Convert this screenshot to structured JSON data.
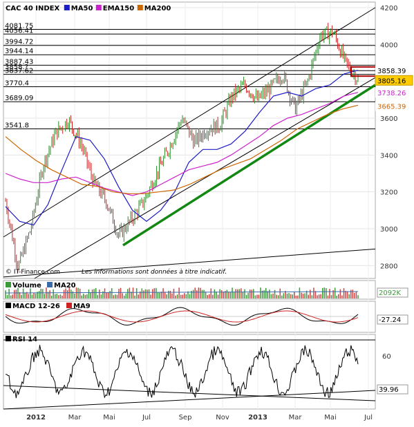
{
  "chart_data": [
    {
      "type": "line",
      "panel": "price",
      "title": "CAC 40 INDEX",
      "legend": [
        {
          "name": "MA50",
          "color": "#1c1cc8"
        },
        {
          "name": "EMA150",
          "color": "#cc22cc"
        },
        {
          "name": "MA200",
          "color": "#cc6600"
        }
      ],
      "ylim": [
        2730,
        4230
      ],
      "yticks": [
        2800,
        3000,
        3200,
        3400,
        3600,
        3800,
        4000,
        4200
      ],
      "xticks": [
        "2012",
        "Mar",
        "Mai",
        "Jul",
        "Sep",
        "Nov",
        "2013",
        "Mar",
        "Mai",
        "Jul"
      ],
      "levels": [
        "4081.75",
        "4056.41",
        "3994.72",
        "3944.14",
        "3887.43",
        "3858.?",
        "3837.62",
        "3770.4",
        "3689.09",
        "3541.8"
      ],
      "right_labels": [
        {
          "text": "3858.39",
          "value": 3858.39,
          "bg": "#ffffff",
          "color": "#000000"
        },
        {
          "text": "3805.16",
          "value": 3805.16,
          "bg": "#ffcc00",
          "color": "#000000"
        },
        {
          "text": "3738.26",
          "value": 3738.26,
          "bg": "#ffffff",
          "color": "#cc22cc"
        },
        {
          "text": "3665.39",
          "value": 3665.39,
          "bg": "#ffffff",
          "color": "#cc6600"
        }
      ],
      "series": [
        {
          "name": "price",
          "values": [
            3150,
            2790,
            3000,
            3350,
            3520,
            3590,
            3460,
            3250,
            3150,
            2960,
            3050,
            3150,
            3300,
            3440,
            3600,
            3470,
            3540,
            3560,
            3720,
            3780,
            3700,
            3760,
            3840,
            3650,
            3800,
            4050,
            4070,
            3900,
            3810
          ]
        },
        {
          "name": "MA50",
          "values": [
            3120,
            3040,
            3020,
            3130,
            3320,
            3500,
            3480,
            3380,
            3230,
            3100,
            3040,
            3100,
            3200,
            3360,
            3430,
            3430,
            3460,
            3530,
            3630,
            3720,
            3740,
            3720,
            3760,
            3780,
            3840,
            3860
          ]
        },
        {
          "name": "EMA150",
          "values": [
            3300,
            3270,
            3250,
            3250,
            3270,
            3280,
            3250,
            3220,
            3200,
            3180,
            3200,
            3240,
            3280,
            3320,
            3340,
            3360,
            3400,
            3450,
            3500,
            3560,
            3600,
            3620,
            3650,
            3680,
            3720,
            3740
          ]
        },
        {
          "name": "MA200",
          "values": [
            3500,
            3430,
            3370,
            3320,
            3280,
            3240,
            3230,
            3200,
            3190,
            3190,
            3200,
            3210,
            3240,
            3280,
            3320,
            3350,
            3380,
            3430,
            3480,
            3540,
            3580,
            3620,
            3650,
            3670
          ]
        }
      ]
    },
    {
      "type": "bar",
      "panel": "volume",
      "legend": [
        {
          "name": "Volume",
          "color": "#3a9a3a"
        },
        {
          "name": "MA20",
          "color": "#3a6aaa"
        }
      ],
      "right_label": "2092K"
    },
    {
      "type": "line",
      "panel": "macd",
      "legend": [
        {
          "name": "MACD 12-26",
          "color": "#000000"
        },
        {
          "name": "MA9",
          "color": "#cc2222"
        }
      ],
      "right_label": "-27.24"
    },
    {
      "type": "line",
      "panel": "rsi",
      "legend": [
        {
          "name": "RSI 14",
          "color": "#000000"
        }
      ],
      "yticks": [
        "60"
      ],
      "right_label": "39.96"
    }
  ],
  "footer": {
    "source": "© IT-Finance.com",
    "disclaimer": "Les informations sont données à titre indicatif."
  }
}
